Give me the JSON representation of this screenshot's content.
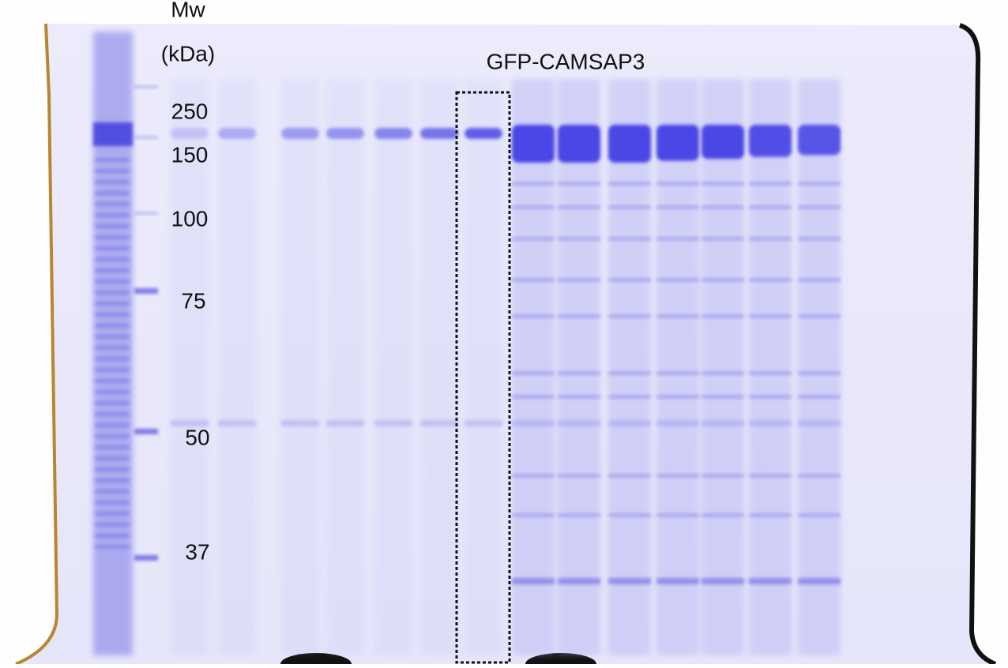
{
  "header": {
    "mw": "Mw",
    "unit": "(kDa)"
  },
  "markers": [
    250,
    150,
    100,
    75,
    50,
    37
  ],
  "annotation": "GFP-CAMSAP3"
}
